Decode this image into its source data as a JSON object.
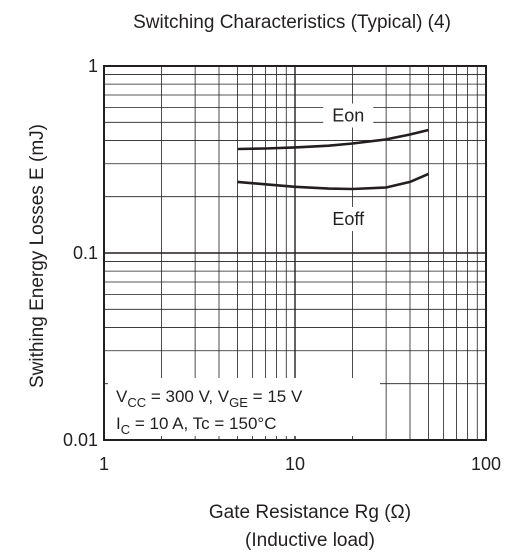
{
  "chart_data": {
    "type": "line",
    "title": "Switching Characteristics (Typical) (4)",
    "xlabel": "Gate Resistance   Rg  (Ω)",
    "xlabel_sub": "(Inductive load)",
    "ylabel": "Swithing Energy Losses   E  (mJ)",
    "x_scale": "log",
    "y_scale": "log",
    "xlim": [
      1,
      100
    ],
    "ylim": [
      0.01,
      1
    ],
    "x_ticks": [
      "1",
      "10",
      "100"
    ],
    "y_ticks": [
      "0.01",
      "0.1",
      "1"
    ],
    "grid": true,
    "series": [
      {
        "name": "Eon",
        "x": [
          5,
          7,
          10,
          15,
          20,
          30,
          40,
          50
        ],
        "y": [
          0.36,
          0.362,
          0.367,
          0.375,
          0.385,
          0.405,
          0.43,
          0.455
        ]
      },
      {
        "name": "Eoff",
        "x": [
          5,
          7,
          10,
          15,
          20,
          30,
          40,
          50
        ],
        "y": [
          0.24,
          0.233,
          0.226,
          0.221,
          0.22,
          0.224,
          0.24,
          0.265
        ]
      }
    ],
    "conditions": [
      {
        "label": "V",
        "sub": "CC",
        "rest": " = 300 V, V",
        "sub2": "GE",
        "rest2": " = 15 V"
      },
      {
        "label": "I",
        "sub": "C",
        "rest": " = 10 A, Tc = 150°C"
      }
    ]
  }
}
